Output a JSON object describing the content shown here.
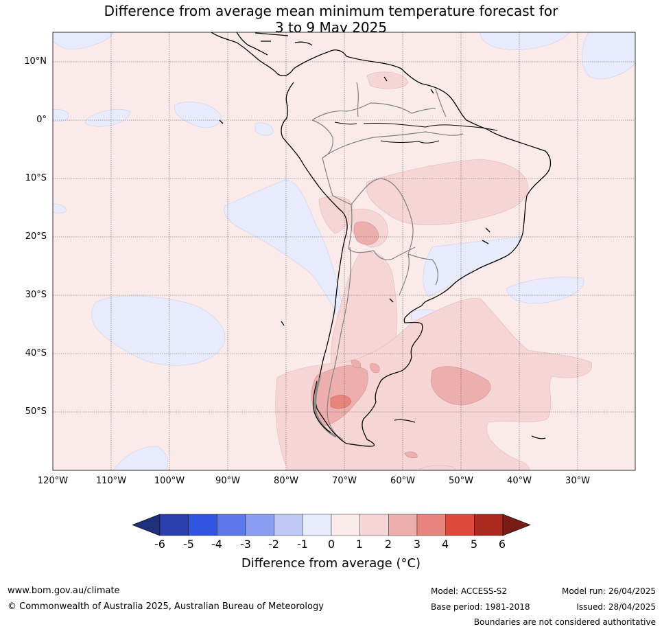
{
  "title_line1": "Difference from average mean minimum temperature forecast for",
  "title_line2": "3 to 9 May 2025",
  "map": {
    "lon_range": [
      -120,
      -20
    ],
    "lat_range": [
      -60,
      15
    ],
    "lat_ticks": [
      {
        "value": 10,
        "label": "10°N"
      },
      {
        "value": 0,
        "label": "0°"
      },
      {
        "value": -10,
        "label": "10°S"
      },
      {
        "value": -20,
        "label": "20°S"
      },
      {
        "value": -30,
        "label": "30°S"
      },
      {
        "value": -40,
        "label": "40°S"
      },
      {
        "value": -50,
        "label": "50°S"
      }
    ],
    "lon_ticks": [
      {
        "value": -120,
        "label": "120°W"
      },
      {
        "value": -110,
        "label": "110°W"
      },
      {
        "value": -100,
        "label": "100°W"
      },
      {
        "value": -90,
        "label": "90°W"
      },
      {
        "value": -80,
        "label": "80°W"
      },
      {
        "value": -70,
        "label": "70°W"
      },
      {
        "value": -60,
        "label": "60°W"
      },
      {
        "value": -50,
        "label": "50°W"
      },
      {
        "value": -40,
        "label": "40°W"
      },
      {
        "value": -30,
        "label": "30°W"
      }
    ]
  },
  "colorbar": {
    "ticks": [
      "-6",
      "-5",
      "-4",
      "-3",
      "-2",
      "-1",
      "0",
      "1",
      "2",
      "3",
      "4",
      "5",
      "6"
    ],
    "colors": [
      "#2b3fae",
      "#3053e0",
      "#5c78e8",
      "#8a9df0",
      "#c0c8f5",
      "#e8ebfb",
      "#fbeaea",
      "#f5d5d5",
      "#edaeae",
      "#e8847e",
      "#dc4a3c",
      "#ab2a20"
    ],
    "low_extend_color": "#1f2f7a",
    "high_extend_color": "#7a1c16",
    "label": "Difference from average (°C)"
  },
  "footer": {
    "url": "www.bom.gov.au/climate",
    "copyright": "© Commonwealth of Australia 2025, Australian Bureau of Meteorology",
    "model": "Model: ACCESS-S2",
    "base_period": "Base period: 1981-2018",
    "model_run": "Model run: 26/04/2025",
    "issued": "Issued: 28/04/2025",
    "disclaimer": "Boundaries are not considered authoritative"
  }
}
